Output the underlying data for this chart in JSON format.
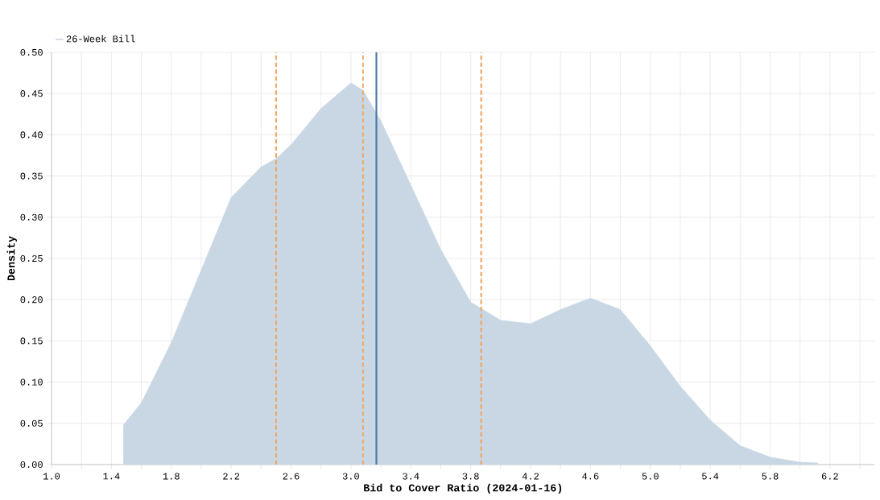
{
  "chart_data": {
    "type": "area",
    "xlabel": "Bid to Cover Ratio (2024-01-16)",
    "ylabel": "Density",
    "x": [
      1.48,
      1.48,
      1.6,
      1.8,
      2.0,
      2.2,
      2.4,
      2.5,
      2.6,
      2.8,
      3.0,
      3.08,
      3.2,
      3.4,
      3.6,
      3.8,
      4.0,
      4.2,
      4.4,
      4.6,
      4.8,
      5.0,
      5.2,
      5.4,
      5.6,
      5.8,
      6.0,
      6.12,
      6.12
    ],
    "series": [
      {
        "name": "26-Week Bill",
        "color": "#c9d7e5",
        "values": [
          0,
          0.048,
          0.075,
          0.148,
          0.236,
          0.324,
          0.361,
          0.371,
          0.388,
          0.432,
          0.463,
          0.454,
          0.417,
          0.339,
          0.261,
          0.197,
          0.175,
          0.171,
          0.188,
          0.202,
          0.188,
          0.144,
          0.095,
          0.054,
          0.023,
          0.009,
          0.003,
          0.002,
          0
        ]
      }
    ],
    "xlim": [
      1.0,
      6.5
    ],
    "xticks": [
      {
        "value": 1.0,
        "label": "1.0"
      },
      {
        "value": 1.2,
        "label": null
      },
      1.4,
      {
        "value": 1.6,
        "label": null
      },
      1.8,
      {
        "value": 2.0,
        "label": null
      },
      2.2,
      {
        "value": 2.4,
        "label": null
      },
      2.6,
      {
        "value": 2.8,
        "label": null
      },
      {
        "value": 3.0,
        "label": "3.0"
      },
      {
        "value": 3.2,
        "label": null
      },
      3.4,
      {
        "value": 3.6,
        "label": null
      },
      3.8,
      {
        "value": 4.0,
        "label": null
      },
      4.2,
      {
        "value": 4.4,
        "label": null
      },
      4.6,
      {
        "value": 4.8,
        "label": null
      },
      {
        "value": 5.0,
        "label": "5.0"
      },
      {
        "value": 5.2,
        "label": null
      },
      5.4,
      {
        "value": 5.6,
        "label": null
      },
      5.8,
      {
        "value": 6.0,
        "label": null
      },
      6.2,
      {
        "value": 6.4,
        "label": null
      }
    ],
    "ylim": [
      0,
      0.5
    ],
    "yticks": [
      {
        "value": 0,
        "label": "0.00"
      },
      {
        "value": 0.05,
        "label": "0.05"
      },
      {
        "value": 0.1,
        "label": "0.10"
      },
      {
        "value": 0.15,
        "label": "0.15"
      },
      {
        "value": 0.2,
        "label": "0.20"
      },
      {
        "value": 0.25,
        "label": "0.25"
      },
      {
        "value": 0.3,
        "label": "0.30"
      },
      {
        "value": 0.35,
        "label": "0.35"
      },
      {
        "value": 0.4,
        "label": "0.40"
      },
      {
        "value": 0.45,
        "label": "0.45"
      },
      {
        "value": 0.5,
        "label": "0.50"
      }
    ],
    "ref_lines": [
      {
        "axis": "x",
        "value": 2.5,
        "color": "#f4a55f",
        "line_style": "dashed"
      },
      {
        "axis": "x",
        "value": 3.08,
        "color": "#f4a55f",
        "line_style": "dashed"
      },
      {
        "axis": "x",
        "value": 3.17,
        "color": "#4c78a8",
        "line_style": "solid"
      },
      {
        "axis": "x",
        "value": 3.87,
        "color": "#f4a55f",
        "line_style": "dashed"
      }
    ],
    "grid": true,
    "legend": "top left"
  }
}
